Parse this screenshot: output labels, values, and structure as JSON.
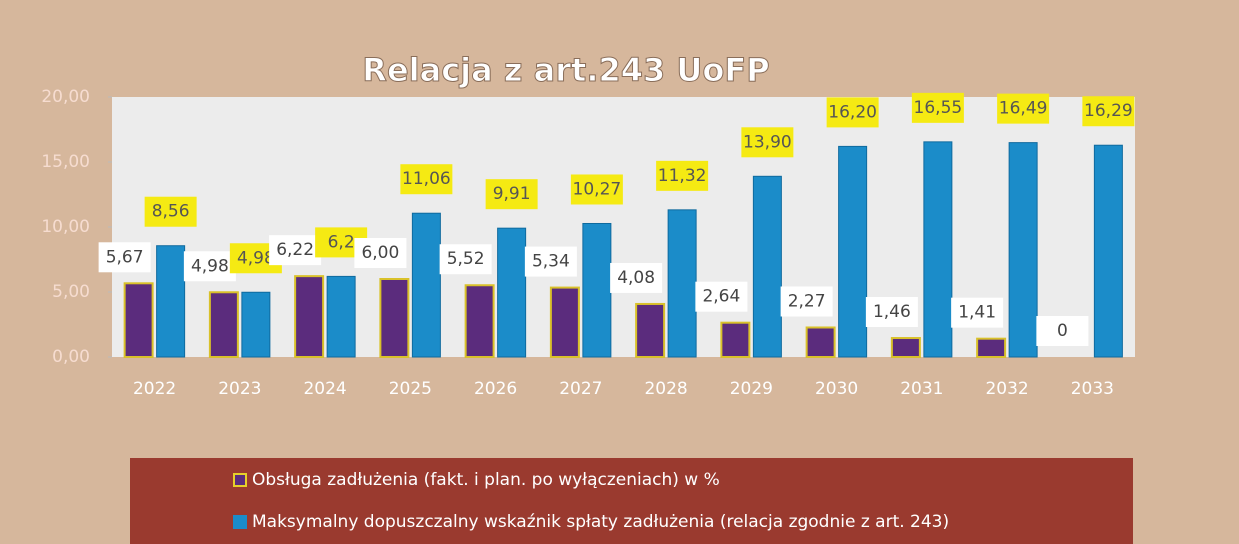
{
  "chart_data": {
    "type": "bar",
    "title": "Relacja z art.243 UoFP",
    "categories": [
      "2022",
      "2023",
      "2024",
      "2025",
      "2026",
      "2027",
      "2028",
      "2029",
      "2030",
      "2031",
      "2032",
      "2033"
    ],
    "series": [
      {
        "name": "Obsługa zadłużenia (fakt. i plan. po wyłączeniach) w %",
        "color": "#5b2c7d",
        "values": [
          5.67,
          4.98,
          6.22,
          6.0,
          5.52,
          5.34,
          4.08,
          2.64,
          2.27,
          1.46,
          1.41,
          0
        ],
        "value_labels": [
          "5,67",
          "4,98",
          "6,22",
          "6,00",
          "5,52",
          "5,34",
          "4,08",
          "2,64",
          "2,27",
          "1,46",
          "1,41",
          "0"
        ]
      },
      {
        "name": "Maksymalny dopuszczalny wskaźnik spłaty  zadłużenia (relacja zgodnie z art. 243)",
        "color": "#1b8cc9",
        "values": [
          8.56,
          4.98,
          6.2,
          11.06,
          9.91,
          10.27,
          11.32,
          13.9,
          16.2,
          16.55,
          16.49,
          16.29
        ],
        "value_labels": [
          "8,56",
          "4,98",
          "6,2",
          "11,06",
          "9,91",
          "10,27",
          "11,32",
          "13,90",
          "16,20",
          "16,55",
          "16,49",
          "16,29"
        ]
      }
    ],
    "ylim": [
      0,
      20
    ],
    "yticks": [
      {
        "value": 0,
        "label": "0,00"
      },
      {
        "value": 5,
        "label": "5,00"
      },
      {
        "value": 10,
        "label": "10,00"
      },
      {
        "value": 15,
        "label": "15,00"
      },
      {
        "value": 20,
        "label": "20,00"
      }
    ],
    "grid": false,
    "legend": "bottom"
  }
}
